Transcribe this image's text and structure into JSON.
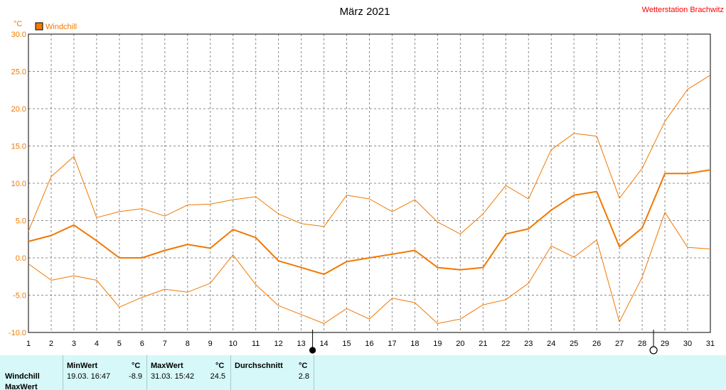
{
  "chart_data": {
    "type": "line",
    "title": "März 2021",
    "station": "Wetterstation Brachwitz",
    "unit": "°C",
    "legend": "Windchill",
    "x": [
      1,
      2,
      3,
      4,
      5,
      6,
      7,
      8,
      9,
      10,
      11,
      12,
      13,
      14,
      15,
      16,
      17,
      18,
      19,
      20,
      21,
      22,
      23,
      24,
      25,
      26,
      27,
      28,
      29,
      30,
      31
    ],
    "ylim": [
      -10,
      30
    ],
    "yticks": [
      "30.0",
      "25.0",
      "20.0",
      "15.0",
      "10.0",
      "5.0",
      "0.0",
      "-5.0",
      "-10.0"
    ],
    "grid": true,
    "series": [
      {
        "name": "Windchill",
        "role": "mean",
        "color": "#f07800",
        "values": [
          2.2,
          3.0,
          4.4,
          2.3,
          0.0,
          0.0,
          1.0,
          1.8,
          1.3,
          3.8,
          2.7,
          -0.4,
          -1.3,
          -2.2,
          -0.5,
          0.0,
          0.5,
          1.0,
          -1.3,
          -1.6,
          -1.3,
          3.2,
          3.9,
          6.4,
          8.4,
          8.9,
          1.5,
          4.0,
          11.3,
          11.3,
          11.8
        ]
      },
      {
        "role": "max",
        "color": "#f07800",
        "values": [
          3.6,
          10.9,
          13.6,
          5.4,
          6.2,
          6.6,
          5.6,
          7.1,
          7.2,
          7.8,
          8.2,
          5.9,
          4.6,
          4.2,
          8.4,
          7.9,
          6.2,
          7.8,
          4.8,
          3.2,
          5.9,
          9.7,
          7.9,
          14.5,
          16.7,
          16.3,
          8.0,
          12.0,
          18.3,
          22.6,
          24.5
        ]
      },
      {
        "role": "min",
        "color": "#f07800",
        "values": [
          -0.8,
          -3.0,
          -2.4,
          -3.0,
          -6.6,
          -5.3,
          -4.2,
          -4.6,
          -3.4,
          0.4,
          -3.6,
          -6.4,
          -7.6,
          -8.8,
          -6.8,
          -8.2,
          -5.4,
          -6.0,
          -8.8,
          -8.2,
          -6.3,
          -5.6,
          -3.4,
          1.6,
          0.1,
          2.4,
          -8.6,
          -2.6,
          6.1,
          1.4,
          1.2
        ]
      }
    ],
    "moon_phases": [
      {
        "day": 13,
        "phase": "new-moon"
      },
      {
        "day": 28,
        "phase": "full-moon"
      }
    ]
  },
  "summary": {
    "headers": {
      "min": "MinWert",
      "unit1": "°C",
      "max": "MaxWert",
      "unit2": "°C",
      "avg": "Durchschnitt",
      "unit3": "°C"
    },
    "rows": [
      {
        "label": "Windchill",
        "min_time": "19.03.  16:47",
        "min_val": "-8.9",
        "max_time": "31.03.  15:42",
        "max_val": "24.5",
        "avg": "2.8"
      }
    ],
    "cut_label": "MaxWert"
  },
  "colors": {
    "line": "#f07800",
    "station": "#ff0000",
    "panel": "#d6f8f8",
    "grid": "#8c8c8c"
  }
}
